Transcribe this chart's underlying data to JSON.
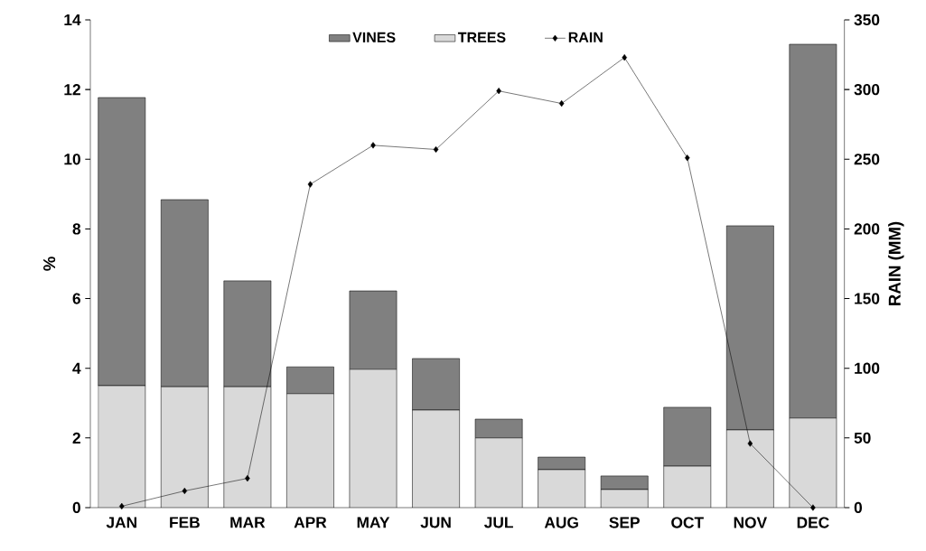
{
  "chart_data": {
    "type": "bar",
    "stacked": true,
    "categories": [
      "JAN",
      "FEB",
      "MAR",
      "APR",
      "MAY",
      "JUN",
      "JUL",
      "AUG",
      "SEP",
      "OCT",
      "NOV",
      "DEC"
    ],
    "ylabel": "%",
    "y2label": "RAIN (MM)",
    "ylim": [
      0,
      14
    ],
    "yticks": [
      0,
      2,
      4,
      6,
      8,
      10,
      12,
      14
    ],
    "y2lim": [
      0,
      350
    ],
    "y2ticks": [
      0,
      50,
      100,
      150,
      200,
      250,
      300,
      350
    ],
    "legend": "top",
    "marker": "diamond",
    "line_style": "solid",
    "series": [
      {
        "name": "TREES",
        "color": "#d9d9d9",
        "values": [
          3.5,
          3.47,
          3.47,
          3.27,
          3.97,
          2.8,
          2.0,
          1.09,
          0.52,
          1.19,
          2.23,
          2.57
        ]
      },
      {
        "name": "VINES",
        "color": "#808080",
        "values": [
          8.27,
          5.37,
          3.04,
          0.77,
          2.25,
          1.48,
          0.54,
          0.36,
          0.39,
          1.69,
          5.86,
          10.73
        ]
      },
      {
        "name": "RAIN",
        "type": "line",
        "axis": "y2",
        "color": "#000000",
        "values": [
          1,
          12,
          21,
          232,
          260,
          257,
          299,
          290,
          323,
          251,
          46,
          0
        ]
      }
    ]
  }
}
